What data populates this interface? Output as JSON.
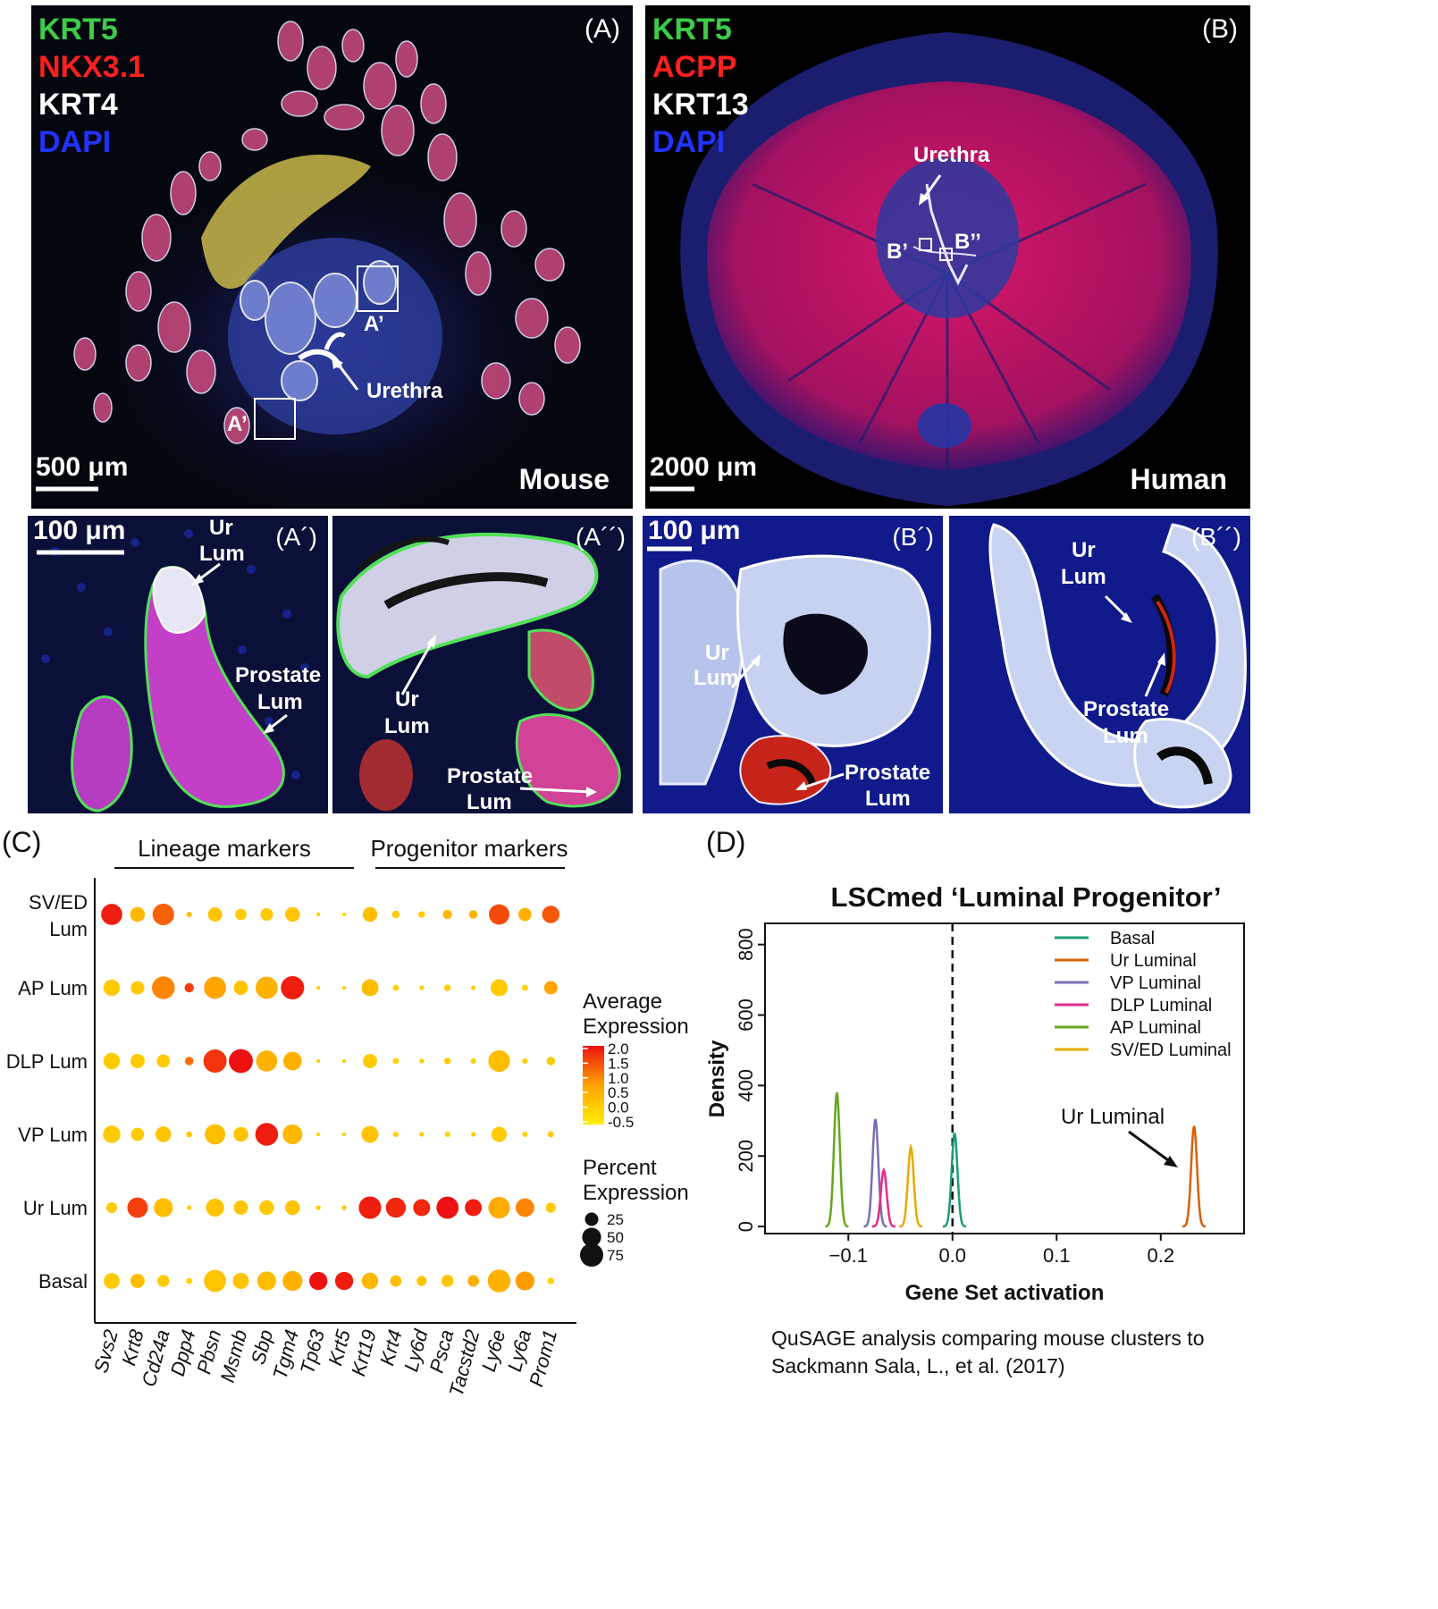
{
  "panel_a": {
    "label": "(A)",
    "markers": [
      {
        "text": "KRT5",
        "color": "#3dcc4a"
      },
      {
        "text": "NKX3.1",
        "color": "#ff2020"
      },
      {
        "text": "KRT4",
        "color": "#ffffff"
      },
      {
        "text": "DAPI",
        "color": "#2233ff"
      }
    ],
    "urethra": "Urethra",
    "box1": "A’",
    "box2": "A’",
    "scale": "500 μm",
    "species": "Mouse"
  },
  "panel_b": {
    "label": "(B)",
    "markers": [
      {
        "text": "KRT5",
        "color": "#3dcc4a"
      },
      {
        "text": "ACPP",
        "color": "#ff2020"
      },
      {
        "text": "KRT13",
        "color": "#ffffff"
      },
      {
        "text": "DAPI",
        "color": "#2233ff"
      }
    ],
    "urethra": "Urethra",
    "box1": "B’",
    "box2": "B’’",
    "scale": "2000 μm",
    "species": "Human"
  },
  "panel_a1": {
    "label": "(A´)",
    "scale": "100 μm",
    "ur1": "Ur",
    "ur2": "Lum",
    "pr1": "Prostate",
    "pr2": "Lum"
  },
  "panel_a2": {
    "label": "(A´´)",
    "ur1": "Ur",
    "ur2": "Lum",
    "pr1": "Prostate",
    "pr2": "Lum"
  },
  "panel_b1": {
    "label": "(B´)",
    "scale": "100 μm",
    "ur1": "Ur",
    "ur2": "Lum",
    "pr1": "Prostate",
    "pr2": "Lum"
  },
  "panel_b2": {
    "label": "(B´´)",
    "ur1": "Ur",
    "ur2": "Lum",
    "pr1": "Prostate",
    "pr2": "Lum"
  },
  "panel_c": {
    "label": "(C)",
    "group1": "Lineage markers",
    "group2": "Progenitor markers",
    "legend_title1": "Average",
    "legend_title2": "Expression",
    "color_ticks": [
      "2.0",
      "1.5",
      "1.0",
      "0.5",
      "0.0",
      "-0.5"
    ],
    "size_title1": "Percent",
    "size_title2": "Expression",
    "size_ticks": [
      "25",
      "50",
      "75"
    ],
    "low_color": "#ffee00",
    "high_color": "#ee1111"
  },
  "panel_d": {
    "label": "(D)",
    "title": "LSCmed ‘Luminal Progenitor’",
    "annotation": "Ur Luminal",
    "caption1": "QuSAGE analysis comparing mouse clusters to",
    "caption2": "Sackmann Sala, L., et al. (2017)"
  },
  "chart_data": [
    {
      "type": "dot",
      "rows": [
        "SV/ED Lum",
        "AP Lum",
        "DLP Lum",
        "VP Lum",
        "Ur Lum",
        "Basal"
      ],
      "row_labels_display": [
        [
          "SV/ED",
          "Lum"
        ],
        [
          "AP Lum"
        ],
        [
          "DLP Lum"
        ],
        [
          "VP Lum"
        ],
        [
          "Ur Lum"
        ],
        [
          "Basal"
        ]
      ],
      "genes": [
        "Svs2",
        "Krt8",
        "Cd24a",
        "Dpp4",
        "Pbsn",
        "Msmb",
        "Sbp",
        "Tgm4",
        "Tp63",
        "Krt5",
        "Krt19",
        "Krt4",
        "Ly6d",
        "Psca",
        "Tacstd2",
        "Ly6e",
        "Ly6a",
        "Prom1"
      ],
      "color_legend": "Average Expression",
      "color_range": [
        -0.5,
        2.0
      ],
      "size_legend": "Percent Expression",
      "avg_expression": [
        [
          1.9,
          0.4,
          1.3,
          0.3,
          0.2,
          0.1,
          0.1,
          0.2,
          0.0,
          0.0,
          0.3,
          0.1,
          0.1,
          0.4,
          0.5,
          1.5,
          0.5,
          1.4
        ],
        [
          0.1,
          0.1,
          1.0,
          1.6,
          0.7,
          0.2,
          0.5,
          1.9,
          0.0,
          0.0,
          0.3,
          0.0,
          0.0,
          0.1,
          0.0,
          0.1,
          0.0,
          0.7
        ],
        [
          0.1,
          0.1,
          0.1,
          1.2,
          1.7,
          2.0,
          0.5,
          0.5,
          0.0,
          0.0,
          0.1,
          0.0,
          0.0,
          0.1,
          0.0,
          0.3,
          0.0,
          0.1
        ],
        [
          0.1,
          0.1,
          0.2,
          0.1,
          0.3,
          0.2,
          1.9,
          0.4,
          0.0,
          0.0,
          0.2,
          0.0,
          0.0,
          0.0,
          0.0,
          0.1,
          0.0,
          0.1
        ],
        [
          0.1,
          1.6,
          0.3,
          0.0,
          0.2,
          0.2,
          0.1,
          0.2,
          0.1,
          0.1,
          1.9,
          1.8,
          1.8,
          2.0,
          1.9,
          0.6,
          1.0,
          0.1
        ],
        [
          0.1,
          0.3,
          0.1,
          0.0,
          0.2,
          0.2,
          0.3,
          0.5,
          2.0,
          1.9,
          0.4,
          0.3,
          0.2,
          0.2,
          0.5,
          0.5,
          0.8,
          0.0
        ]
      ],
      "pct_expression": [
        [
          62,
          30,
          65,
          4,
          28,
          18,
          22,
          30,
          2,
          2,
          30,
          8,
          6,
          12,
          10,
          58,
          24,
          42
        ],
        [
          38,
          25,
          72,
          12,
          68,
          28,
          68,
          75,
          2,
          2,
          40,
          5,
          3,
          6,
          3,
          40,
          5,
          25
        ],
        [
          38,
          28,
          24,
          10,
          75,
          80,
          62,
          48,
          2,
          2,
          28,
          5,
          3,
          6,
          4,
          65,
          4,
          10
        ],
        [
          42,
          24,
          34,
          5,
          58,
          30,
          72,
          54,
          2,
          2,
          40,
          4,
          3,
          4,
          3,
          32,
          4,
          5
        ],
        [
          16,
          58,
          50,
          3,
          45,
          28,
          30,
          30,
          3,
          3,
          70,
          56,
          40,
          68,
          40,
          65,
          48,
          14
        ],
        [
          35,
          28,
          20,
          5,
          68,
          36,
          50,
          55,
          46,
          46,
          38,
          18,
          14,
          20,
          18,
          72,
          50,
          6
        ]
      ]
    },
    {
      "type": "line",
      "title": "LSCmed ‘Luminal Progenitor’",
      "xlabel": "Gene Set activation",
      "ylabel": "Density",
      "xlim": [
        -0.18,
        0.28
      ],
      "ylim": [
        -20,
        860
      ],
      "xticks": [
        "-0.1",
        "0.0",
        "0.1",
        "0.2"
      ],
      "yticks": [
        "0",
        "200",
        "400",
        "600",
        "800"
      ],
      "legend_position": "top-right",
      "reference_line_x": 0.0,
      "series": [
        {
          "name": "Basal",
          "color": "#1b9e77",
          "peak_x": 0.002,
          "peak_y": 265
        },
        {
          "name": "Ur Luminal",
          "color": "#d95f02",
          "peak_x": 0.232,
          "peak_y": 285
        },
        {
          "name": "VP Luminal",
          "color": "#7570b3",
          "peak_x": -0.074,
          "peak_y": 305
        },
        {
          "name": "DLP Luminal",
          "color": "#e7298a",
          "peak_x": -0.066,
          "peak_y": 160
        },
        {
          "name": "AP Luminal",
          "color": "#66a61e",
          "peak_x": -0.111,
          "peak_y": 380
        },
        {
          "name": "SV/ED Luminal",
          "color": "#e6ab02",
          "peak_x": -0.04,
          "peak_y": 225
        }
      ]
    }
  ]
}
